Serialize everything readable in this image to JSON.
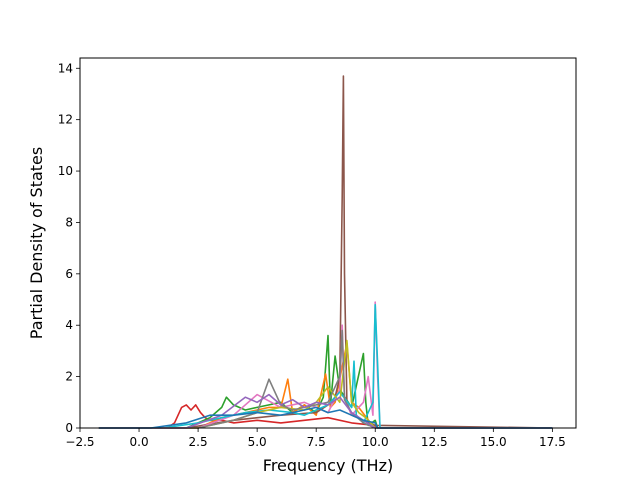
{
  "chart_data": {
    "type": "line",
    "title": "",
    "xlabel": "Frequency (THz)",
    "ylabel": "Partial Density of States",
    "xlim": [
      -2.5,
      18.5
    ],
    "ylim": [
      0,
      14.4
    ],
    "xticks": [
      -2.5,
      0.0,
      2.5,
      5.0,
      7.5,
      10.0,
      12.5,
      15.0,
      17.5
    ],
    "xtick_labels": [
      "−2.5",
      "0.0",
      "2.5",
      "5.0",
      "7.5",
      "10.0",
      "12.5",
      "15.0",
      "17.5"
    ],
    "yticks": [
      0,
      2,
      4,
      6,
      8,
      10,
      12,
      14
    ],
    "ytick_labels": [
      "0",
      "2",
      "4",
      "6",
      "8",
      "10",
      "12",
      "14"
    ],
    "grid": false,
    "legend": "none",
    "colors": [
      "#1f77b4",
      "#ff7f0e",
      "#2ca02c",
      "#d62728",
      "#9467bd",
      "#8c564b",
      "#e377c2",
      "#7f7f7f",
      "#bcbd22",
      "#17becf"
    ],
    "series": [
      {
        "color": "#d62728",
        "x": [
          -1.7,
          1.2,
          1.5,
          1.8,
          2.0,
          2.2,
          2.4,
          2.6,
          2.8,
          3.0,
          3.5,
          4.0,
          5.0,
          6.0,
          7.0,
          8.0,
          9.0,
          10.0,
          10.1,
          17.5
        ],
        "y": [
          0,
          0,
          0.2,
          0.8,
          0.9,
          0.7,
          0.9,
          0.6,
          0.4,
          0.3,
          0.3,
          0.2,
          0.3,
          0.2,
          0.3,
          0.4,
          0.2,
          0.1,
          0,
          0
        ]
      },
      {
        "color": "#2ca02c",
        "x": [
          -1.7,
          2.0,
          3.0,
          3.5,
          3.7,
          4.0,
          4.5,
          5.0,
          5.5,
          6.0,
          6.5,
          7.0,
          7.5,
          7.8,
          8.0,
          8.1,
          8.3,
          8.5,
          9.0,
          9.5,
          9.6,
          9.7,
          10.0,
          10.1,
          17.5
        ],
        "y": [
          0,
          0,
          0.4,
          0.8,
          1.2,
          0.9,
          0.7,
          0.8,
          0.9,
          1.0,
          0.6,
          0.9,
          0.6,
          1.2,
          3.6,
          0.9,
          2.8,
          1.5,
          0.8,
          2.9,
          1.0,
          0.1,
          0.3,
          0,
          0
        ]
      },
      {
        "color": "#ff7f0e",
        "x": [
          -1.7,
          2.5,
          3.5,
          4.5,
          5.5,
          6.0,
          6.3,
          6.5,
          7.0,
          7.5,
          7.9,
          8.1,
          8.3,
          8.8,
          9.0,
          9.3,
          9.8,
          10.0,
          17.5
        ],
        "y": [
          0,
          0,
          0.4,
          0.6,
          0.8,
          0.8,
          1.9,
          0.6,
          0.9,
          0.5,
          2.1,
          0.8,
          1.0,
          3.3,
          1.0,
          0.8,
          0.2,
          0,
          0
        ]
      },
      {
        "color": "#8c564b",
        "x": [
          -1.7,
          2.0,
          4.0,
          6.0,
          7.5,
          8.0,
          8.3,
          8.5,
          8.6,
          8.65,
          8.7,
          8.8,
          9.0,
          9.5,
          10.0,
          17.5
        ],
        "y": [
          0,
          0,
          0.3,
          0.5,
          0.6,
          0.9,
          1.2,
          2.0,
          9.0,
          13.7,
          6.0,
          1.0,
          0.5,
          0.3,
          0.1,
          0
        ]
      },
      {
        "color": "#e377c2",
        "x": [
          -1.7,
          2.5,
          4.0,
          5.0,
          6.0,
          7.0,
          8.0,
          8.5,
          8.6,
          8.7,
          9.0,
          9.5,
          9.7,
          9.9,
          10.0,
          10.1,
          10.2,
          17.5
        ],
        "y": [
          0,
          0,
          0.5,
          1.3,
          0.8,
          1.0,
          0.6,
          1.5,
          4.0,
          1.2,
          0.5,
          1.0,
          2.0,
          0.5,
          4.9,
          2.0,
          0,
          0
        ]
      },
      {
        "color": "#17becf",
        "x": [
          -1.7,
          1.0,
          2.5,
          3.5,
          4.5,
          5.5,
          6.5,
          7.0,
          7.5,
          8.0,
          8.5,
          9.0,
          9.1,
          9.2,
          9.5,
          9.9,
          10.0,
          10.1,
          10.2,
          17.5
        ],
        "y": [
          0,
          0,
          0.2,
          0.4,
          0.6,
          0.7,
          0.6,
          0.5,
          0.7,
          0.9,
          1.4,
          0.8,
          2.6,
          0.5,
          0.2,
          1.0,
          4.8,
          2.5,
          0,
          0
        ]
      },
      {
        "color": "#bcbd22",
        "x": [
          -1.7,
          2.5,
          4.0,
          5.0,
          6.0,
          7.0,
          7.5,
          8.0,
          8.5,
          8.8,
          9.0,
          9.3,
          9.6,
          10.0,
          17.5
        ],
        "y": [
          0,
          0,
          0.3,
          0.6,
          0.8,
          0.7,
          1.0,
          1.6,
          1.0,
          3.4,
          1.0,
          0.6,
          0.4,
          0,
          0
        ]
      },
      {
        "color": "#7f7f7f",
        "x": [
          -1.7,
          2.5,
          4.0,
          5.0,
          5.5,
          6.0,
          6.5,
          7.0,
          7.5,
          8.0,
          8.5,
          8.6,
          8.7,
          9.0,
          9.5,
          10.0,
          17.5
        ],
        "y": [
          0,
          0,
          0.3,
          0.6,
          1.9,
          0.9,
          0.7,
          0.8,
          0.9,
          1.0,
          2.0,
          3.8,
          1.1,
          0.6,
          0.2,
          0,
          0
        ]
      },
      {
        "color": "#9467bd",
        "x": [
          -1.7,
          2.0,
          3.5,
          4.5,
          5.0,
          5.5,
          6.0,
          6.5,
          7.0,
          7.5,
          8.0,
          8.5,
          9.0,
          9.5,
          10.0,
          17.5
        ],
        "y": [
          0,
          0,
          0.5,
          1.2,
          1.0,
          1.3,
          0.9,
          1.1,
          0.8,
          1.0,
          0.9,
          1.2,
          0.6,
          0.3,
          0,
          0
        ]
      },
      {
        "color": "#1f77b4",
        "x": [
          -1.7,
          0.5,
          2.0,
          3.0,
          4.0,
          5.0,
          6.0,
          7.0,
          7.5,
          8.0,
          8.5,
          9.0,
          9.5,
          10.0,
          10.1,
          17.5
        ],
        "y": [
          0,
          0,
          0.2,
          0.5,
          0.5,
          0.6,
          0.5,
          0.7,
          0.8,
          0.6,
          0.7,
          0.5,
          0.3,
          0.2,
          0,
          0
        ]
      }
    ]
  }
}
